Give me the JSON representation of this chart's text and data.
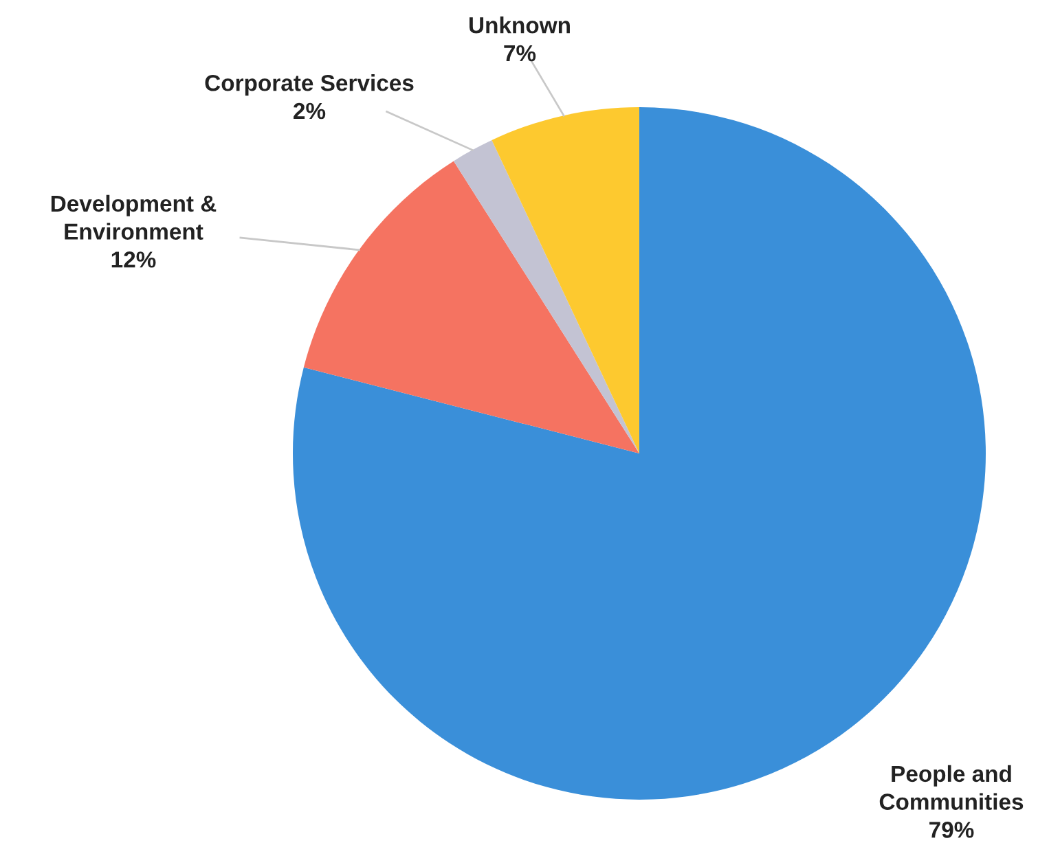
{
  "chart_data": {
    "type": "pie",
    "categories": [
      "People and\nCommunities",
      "Development &\nEnvironment",
      "Corporate Services",
      "Unknown"
    ],
    "values": [
      79,
      12,
      2,
      7
    ],
    "value_labels": [
      "79%",
      "12%",
      "2%",
      "7%"
    ],
    "colors": [
      "#3a8fd9",
      "#f57361",
      "#c3c3d3",
      "#fdc92f"
    ],
    "legend": false
  }
}
